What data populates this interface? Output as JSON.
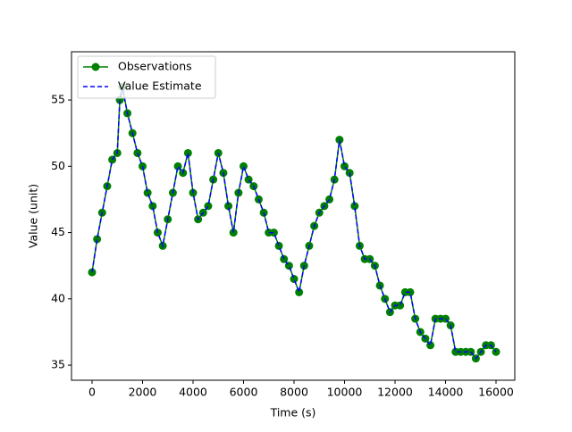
{
  "chart_data": {
    "type": "line",
    "xlabel": "Time (s)",
    "ylabel": "Value (unit)",
    "x": [
      0,
      200,
      400,
      600,
      800,
      1000,
      1100,
      1200,
      1400,
      1600,
      1800,
      2000,
      2200,
      2400,
      2600,
      2800,
      3000,
      3200,
      3400,
      3600,
      3800,
      4000,
      4200,
      4400,
      4600,
      4800,
      5000,
      5200,
      5400,
      5600,
      5800,
      6000,
      6200,
      6400,
      6600,
      6800,
      7000,
      7200,
      7400,
      7600,
      7800,
      8000,
      8200,
      8400,
      8600,
      8800,
      9000,
      9200,
      9400,
      9600,
      9800,
      10000,
      10200,
      10400,
      10600,
      10800,
      11000,
      11200,
      11400,
      11600,
      11800,
      12000,
      12200,
      12400,
      12600,
      12800,
      13000,
      13200,
      13400,
      13600,
      13800,
      14000,
      14200,
      14400,
      14600,
      14800,
      15000,
      15200,
      15400,
      15600,
      15800,
      16000
    ],
    "series": [
      {
        "name": "Observations",
        "color": "#008000",
        "style": "solid",
        "marker": "circle",
        "values": [
          42,
          44.5,
          46.5,
          48.5,
          50.5,
          51,
          55,
          56,
          54,
          52.5,
          51,
          50,
          48,
          47,
          45,
          44,
          46,
          48,
          50,
          49.5,
          51,
          48,
          46,
          46.5,
          47,
          49,
          51,
          49.5,
          47,
          45,
          48,
          50,
          49,
          48.5,
          47.5,
          46.5,
          45,
          45,
          44,
          43,
          42.5,
          41.5,
          40.5,
          42.5,
          44,
          45.5,
          46.5,
          47,
          47.5,
          49,
          52,
          50,
          49.5,
          47,
          44,
          43,
          43,
          42.5,
          41,
          40,
          39,
          39.5,
          39.5,
          40.5,
          40.5,
          38.5,
          37.5,
          37,
          36.5,
          38.5,
          38.5,
          38.5,
          38,
          36,
          36,
          36,
          36,
          35.5,
          36,
          36.5,
          36.5,
          36
        ]
      },
      {
        "name": "Value Estimate",
        "color": "#0000ff",
        "style": "dashed",
        "values": [
          42,
          44.5,
          46.5,
          48.5,
          50.5,
          51,
          55,
          56,
          54,
          52.5,
          51,
          50,
          48,
          47,
          45,
          44,
          46,
          48,
          50,
          49.5,
          51,
          48,
          46,
          46.5,
          47,
          49,
          51,
          49.5,
          47,
          45,
          48,
          50,
          49,
          48.5,
          47.5,
          46.5,
          45,
          45,
          44,
          43,
          42.5,
          41.5,
          40.5,
          42.5,
          44,
          45.5,
          46.5,
          47,
          47.5,
          49,
          52,
          50,
          49.5,
          47,
          44,
          43,
          43,
          42.5,
          41,
          40,
          39,
          39.5,
          39.5,
          40.5,
          40.5,
          38.5,
          37.5,
          37,
          36.5,
          38.5,
          38.5,
          38.5,
          38,
          36,
          36,
          36,
          36,
          35.5,
          36,
          36.5,
          36.5,
          36
        ]
      }
    ],
    "xlim": [
      -814,
      16743
    ],
    "ylim": [
      33.86,
      58.64
    ],
    "xticks": [
      0,
      2000,
      4000,
      6000,
      8000,
      10000,
      12000,
      14000,
      16000
    ],
    "yticks": [
      35,
      40,
      45,
      50,
      55
    ],
    "legend": "upper left"
  }
}
